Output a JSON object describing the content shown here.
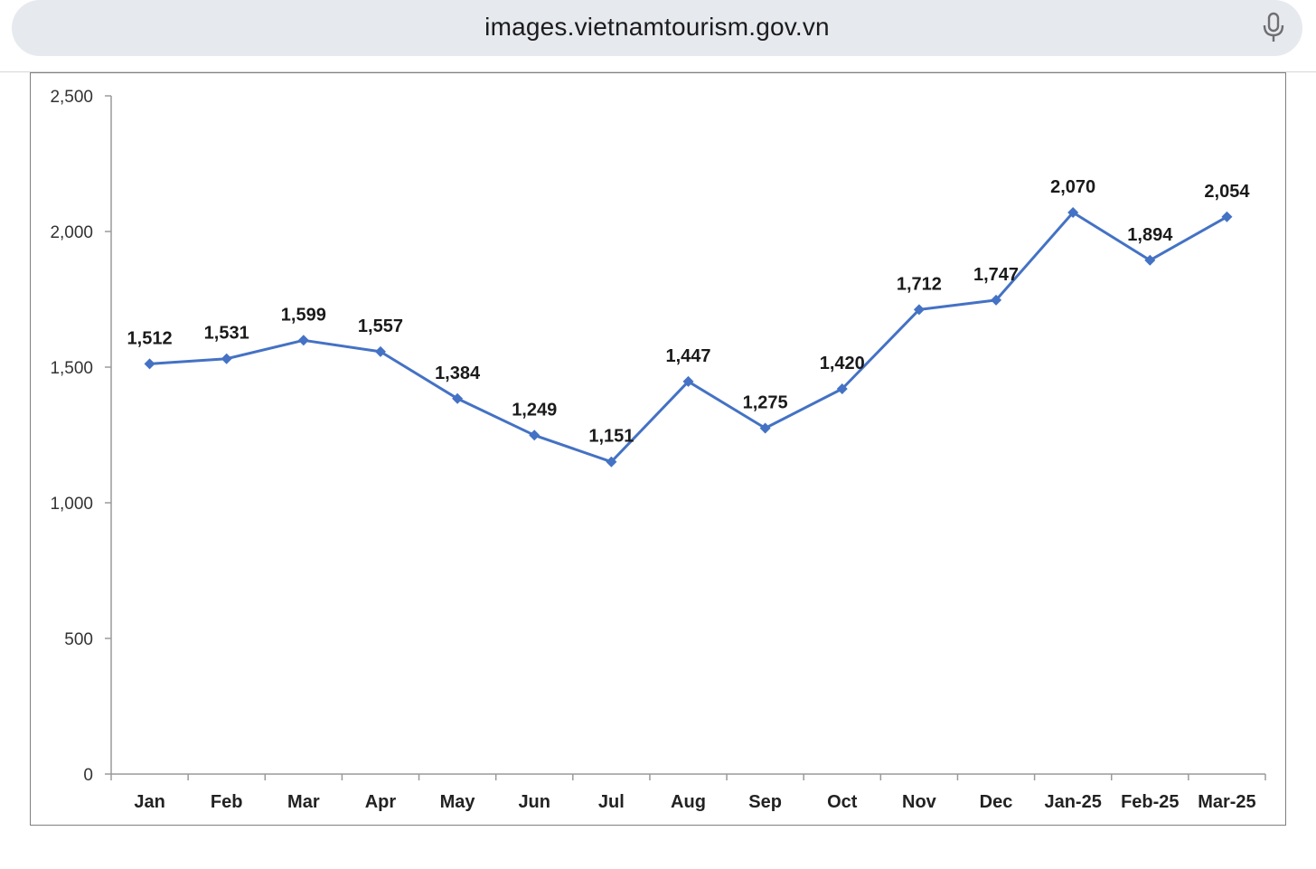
{
  "browser": {
    "url": "images.vietnamtourism.gov.vn",
    "mic_icon": "microphone-icon"
  },
  "chart_data": {
    "type": "line",
    "categories": [
      "Jan",
      "Feb",
      "Mar",
      "Apr",
      "May",
      "Jun",
      "Jul",
      "Aug",
      "Sep",
      "Oct",
      "Nov",
      "Dec",
      "Jan-25",
      "Feb-25",
      "Mar-25"
    ],
    "series": [
      {
        "values": [
          1512,
          1531,
          1599,
          1557,
          1384,
          1249,
          1151,
          1447,
          1275,
          1420,
          1712,
          1747,
          2070,
          1894,
          2054
        ],
        "data_labels": [
          "1,512",
          "1,531",
          "1,599",
          "1,557",
          "1,384",
          "1,249",
          "1,151",
          "1,447",
          "1,275",
          "1,420",
          "1,712",
          "1,747",
          "2,070",
          "1,894",
          "2,054"
        ],
        "color": "#4472c4",
        "marker": "diamond"
      }
    ],
    "highlight_last_label_color": "#e8242c",
    "ylim": [
      0,
      2500
    ],
    "yticks": [
      0,
      500,
      1000,
      1500,
      2000,
      2500
    ],
    "ytick_labels": [
      "0",
      "500",
      "1,000",
      "1,500",
      "2,000",
      "2,500"
    ],
    "title": "",
    "xlabel": "",
    "ylabel": "",
    "grid": false,
    "legend": "none"
  }
}
